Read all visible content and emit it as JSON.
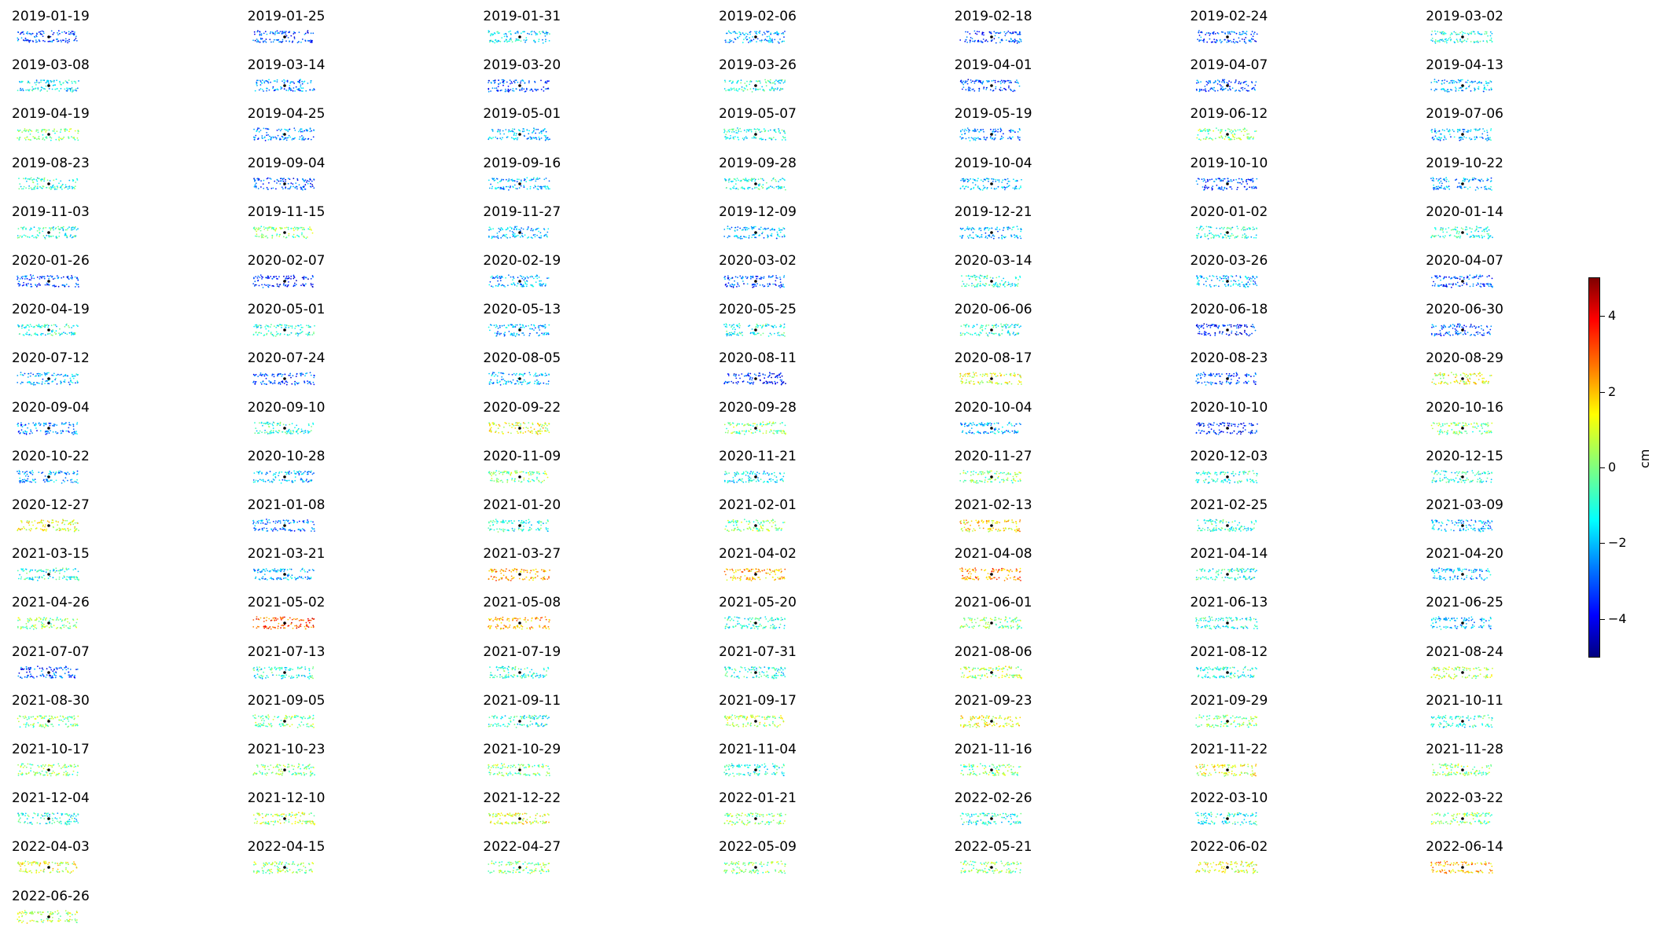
{
  "chart_data": {
    "type": "scatter",
    "panels": [
      "2019-01-19",
      "2019-01-25",
      "2019-01-31",
      "2019-02-06",
      "2019-02-18",
      "2019-02-24",
      "2019-03-02",
      "2019-03-08",
      "2019-03-14",
      "2019-03-20",
      "2019-03-26",
      "2019-04-01",
      "2019-04-07",
      "2019-04-13",
      "2019-04-19",
      "2019-04-25",
      "2019-05-01",
      "2019-05-07",
      "2019-05-19",
      "2019-06-12",
      "2019-07-06",
      "2019-08-23",
      "2019-09-04",
      "2019-09-16",
      "2019-09-28",
      "2019-10-04",
      "2019-10-10",
      "2019-10-22",
      "2019-11-03",
      "2019-11-15",
      "2019-11-27",
      "2019-12-09",
      "2019-12-21",
      "2020-01-02",
      "2020-01-14",
      "2020-01-26",
      "2020-02-07",
      "2020-02-19",
      "2020-03-02",
      "2020-03-14",
      "2020-03-26",
      "2020-04-07",
      "2020-04-19",
      "2020-05-01",
      "2020-05-13",
      "2020-05-25",
      "2020-06-06",
      "2020-06-18",
      "2020-06-30",
      "2020-07-12",
      "2020-07-24",
      "2020-08-05",
      "2020-08-11",
      "2020-08-17",
      "2020-08-23",
      "2020-08-29",
      "2020-09-04",
      "2020-09-10",
      "2020-09-22",
      "2020-09-28",
      "2020-10-04",
      "2020-10-10",
      "2020-10-16",
      "2020-10-22",
      "2020-10-28",
      "2020-11-09",
      "2020-11-21",
      "2020-11-27",
      "2020-12-03",
      "2020-12-15",
      "2020-12-27",
      "2021-01-08",
      "2021-01-20",
      "2021-02-01",
      "2021-02-13",
      "2021-02-25",
      "2021-03-09",
      "2021-03-15",
      "2021-03-21",
      "2021-03-27",
      "2021-04-02",
      "2021-04-08",
      "2021-04-14",
      "2021-04-20",
      "2021-04-26",
      "2021-05-02",
      "2021-05-08",
      "2021-05-20",
      "2021-06-01",
      "2021-06-13",
      "2021-06-25",
      "2021-07-07",
      "2021-07-13",
      "2021-07-19",
      "2021-07-31",
      "2021-08-06",
      "2021-08-12",
      "2021-08-24",
      "2021-08-30",
      "2021-09-05",
      "2021-09-11",
      "2021-09-17",
      "2021-09-23",
      "2021-09-29",
      "2021-10-11",
      "2021-10-17",
      "2021-10-23",
      "2021-10-29",
      "2021-11-04",
      "2021-11-16",
      "2021-11-22",
      "2021-11-28",
      "2021-12-04",
      "2021-12-10",
      "2021-12-22",
      "2022-01-21",
      "2022-02-26",
      "2022-03-10",
      "2022-03-22",
      "2022-04-03",
      "2022-04-15",
      "2022-04-27",
      "2022-05-09",
      "2022-05-21",
      "2022-06-02",
      "2022-06-14",
      "2022-06-26"
    ],
    "mean_values": [
      -3,
      -3,
      -1.5,
      -2,
      -3,
      -3,
      -1,
      -1.5,
      -2.5,
      -3,
      -1,
      -3,
      -3,
      -2,
      0,
      -2.5,
      -2,
      -1,
      -2.5,
      0,
      -2,
      -1,
      -3,
      -2,
      -1,
      -2,
      -3,
      -2,
      -1,
      0,
      -2,
      -2,
      -2,
      -1,
      -1,
      -3,
      -3.5,
      -2,
      -3,
      -1,
      -2,
      -3,
      -1,
      -1,
      -2,
      -1,
      -1,
      -3.5,
      -3,
      -2,
      -3,
      -2,
      -3.5,
      1,
      -3,
      1,
      -2.5,
      -1,
      1,
      0,
      -2,
      -3.5,
      0,
      -2,
      -2,
      0,
      -1.5,
      0,
      -1,
      -1,
      1,
      -2.5,
      -1,
      0,
      1.5,
      -1,
      -2,
      -1,
      -2,
      2,
      2,
      2.5,
      -1,
      -2,
      0,
      3,
      2,
      -1,
      0,
      -1,
      -2,
      -3,
      -1,
      -1,
      -1,
      0.5,
      -1,
      0.5,
      0,
      0,
      -1,
      0.5,
      1,
      0,
      -1,
      0,
      0,
      0,
      -1,
      0,
      1,
      0,
      -1,
      0.5,
      1,
      0,
      -1,
      -1,
      0,
      1,
      0,
      0,
      0,
      0,
      1,
      2,
      0.5
    ],
    "colorbar": {
      "colormap": "jet",
      "range": [
        -5,
        5
      ],
      "ticks": [
        "4",
        "2",
        "0",
        "−2",
        "−4"
      ],
      "tick_values": [
        4,
        2,
        0,
        -2,
        -4
      ],
      "label": "cm"
    }
  }
}
